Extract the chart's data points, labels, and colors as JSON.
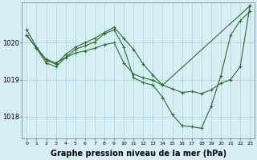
{
  "bg_color": "#d6eff5",
  "grid_color": "#aad4dc",
  "line_color": "#2d6a2d",
  "xlabel": "Graphe pression niveau de la mer (hPa)",
  "xlabel_fontsize": 7,
  "xlim": [
    -0.5,
    23.5
  ],
  "ylim": [
    1017.4,
    1021.1
  ],
  "yticks": [
    1018,
    1019,
    1020
  ],
  "ytick_fontsize": 6,
  "xtick_fontsize": 4.5,
  "xticks": [
    0,
    1,
    2,
    3,
    4,
    5,
    6,
    7,
    8,
    9,
    10,
    11,
    12,
    13,
    14,
    15,
    16,
    17,
    18,
    19,
    20,
    21,
    22,
    23
  ],
  "line1_x": [
    0,
    1,
    2,
    3,
    4,
    5,
    6,
    7,
    8,
    9,
    10,
    11,
    12,
    13,
    14,
    15,
    16,
    17,
    18,
    19,
    20,
    21,
    22,
    23
  ],
  "line1_y": [
    1020.2,
    1019.85,
    1019.55,
    1019.45,
    1019.6,
    1019.72,
    1019.78,
    1019.85,
    1019.95,
    1020.0,
    1019.45,
    1019.15,
    1019.05,
    1018.98,
    1018.85,
    1018.75,
    1018.65,
    1018.68,
    1018.62,
    1018.72,
    1018.9,
    1019.0,
    1019.35,
    1021.0
  ],
  "line2_x": [
    0,
    1,
    2,
    3,
    4,
    5,
    6,
    7,
    8,
    9,
    10,
    11,
    12,
    13,
    14,
    15,
    16,
    17,
    18,
    19,
    20,
    21,
    22,
    23
  ],
  "line2_y": [
    1020.2,
    1019.85,
    1019.45,
    1019.35,
    1019.6,
    1019.82,
    1019.92,
    1020.02,
    1020.25,
    1020.35,
    1019.88,
    1019.05,
    1018.92,
    1018.85,
    1018.52,
    1018.05,
    1017.75,
    1017.72,
    1017.68,
    1018.28,
    1019.1,
    1020.2,
    1020.6,
    1020.85
  ],
  "line3_x": [
    0,
    1,
    2,
    3,
    4,
    5,
    6,
    7,
    8,
    9,
    10,
    11,
    12,
    13,
    14,
    23
  ],
  "line3_y": [
    1020.35,
    1019.88,
    1019.52,
    1019.42,
    1019.68,
    1019.88,
    1020.0,
    1020.12,
    1020.28,
    1020.42,
    1020.12,
    1019.82,
    1019.42,
    1019.12,
    1018.85,
    1021.0
  ]
}
